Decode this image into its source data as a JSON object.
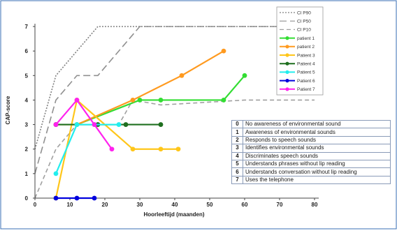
{
  "chart_data": {
    "type": "line",
    "xlabel": "Hoorleeftijd (maanden)",
    "ylabel": "CAP-score",
    "xlim": [
      0,
      80
    ],
    "ylim": [
      0,
      7
    ],
    "x_ticks": [
      "0",
      "10",
      "20",
      "30",
      "40",
      "50",
      "60",
      "70",
      "80"
    ],
    "y_ticks": [
      "0",
      "1",
      "2",
      "3",
      "4",
      "5",
      "6",
      "7"
    ],
    "grid": false,
    "legend_position": "top-right",
    "reference_curves": [
      {
        "name": "CI P90",
        "style": "dotted",
        "color": "#808080",
        "points": [
          [
            0,
            2
          ],
          [
            6,
            5
          ],
          [
            12,
            6
          ],
          [
            18,
            7
          ],
          [
            30,
            7
          ],
          [
            80,
            7
          ]
        ]
      },
      {
        "name": "CI P50",
        "style": "long-dash",
        "color": "#909090",
        "points": [
          [
            0,
            1
          ],
          [
            6,
            4
          ],
          [
            12,
            5
          ],
          [
            18,
            5
          ],
          [
            30,
            7
          ],
          [
            80,
            7
          ]
        ]
      },
      {
        "name": "CI P10",
        "style": "dashed",
        "color": "#a0a0a0",
        "points": [
          [
            0,
            0
          ],
          [
            6,
            2
          ],
          [
            12,
            3
          ],
          [
            24,
            3
          ],
          [
            28,
            4
          ],
          [
            36,
            3.8
          ],
          [
            60,
            4
          ],
          [
            80,
            4
          ]
        ]
      }
    ],
    "series": [
      {
        "name": "patient 1",
        "color": "#33dd33",
        "points": [
          [
            12,
            3
          ],
          [
            30,
            4
          ],
          [
            36,
            4
          ],
          [
            54,
            4
          ],
          [
            60,
            5
          ]
        ]
      },
      {
        "name": "patient 2",
        "color": "#ff9a1f",
        "points": [
          [
            6,
            3
          ],
          [
            12,
            3
          ],
          [
            28,
            4
          ],
          [
            42,
            5
          ],
          [
            54,
            6
          ]
        ]
      },
      {
        "name": "Patient 3",
        "color": "#ffc61a",
        "points": [
          [
            6,
            0
          ],
          [
            12,
            4
          ],
          [
            28,
            2
          ],
          [
            36,
            2
          ],
          [
            41,
            2
          ]
        ]
      },
      {
        "name": "Patient 4",
        "color": "#1f6f1f",
        "points": [
          [
            6,
            3
          ],
          [
            18,
            3
          ],
          [
            26,
            3
          ],
          [
            36,
            3
          ]
        ]
      },
      {
        "name": "Patient 5",
        "color": "#22eeee",
        "points": [
          [
            6,
            1
          ],
          [
            12,
            3
          ],
          [
            17,
            3
          ],
          [
            24,
            3
          ]
        ]
      },
      {
        "name": "Patient 6",
        "color": "#0000dd",
        "points": [
          [
            6,
            0
          ],
          [
            12,
            0
          ],
          [
            17,
            0
          ]
        ]
      },
      {
        "name": "Patient 7",
        "color": "#ff22ee",
        "points": [
          [
            6,
            3
          ],
          [
            12,
            4
          ],
          [
            17,
            3
          ],
          [
            22,
            2
          ]
        ]
      }
    ]
  },
  "cap_table": [
    {
      "code": "0",
      "description": "No awareness of environmental sound"
    },
    {
      "code": "1",
      "description": "Awareness of environmental sounds"
    },
    {
      "code": "2",
      "description": "Responds to speech sounds"
    },
    {
      "code": "3",
      "description": "Identifies environmental sounds"
    },
    {
      "code": "4",
      "description": "Discriminates speech sounds"
    },
    {
      "code": "5",
      "description": "Understands phrases without lip reading"
    },
    {
      "code": "6",
      "description": "Understands conversation without lip reading"
    },
    {
      "code": "7",
      "description": "Uses the telephone"
    }
  ],
  "colors": {
    "frame": "#3a6fb5",
    "axis": "#444444",
    "table_border": "#8a9bb8"
  }
}
